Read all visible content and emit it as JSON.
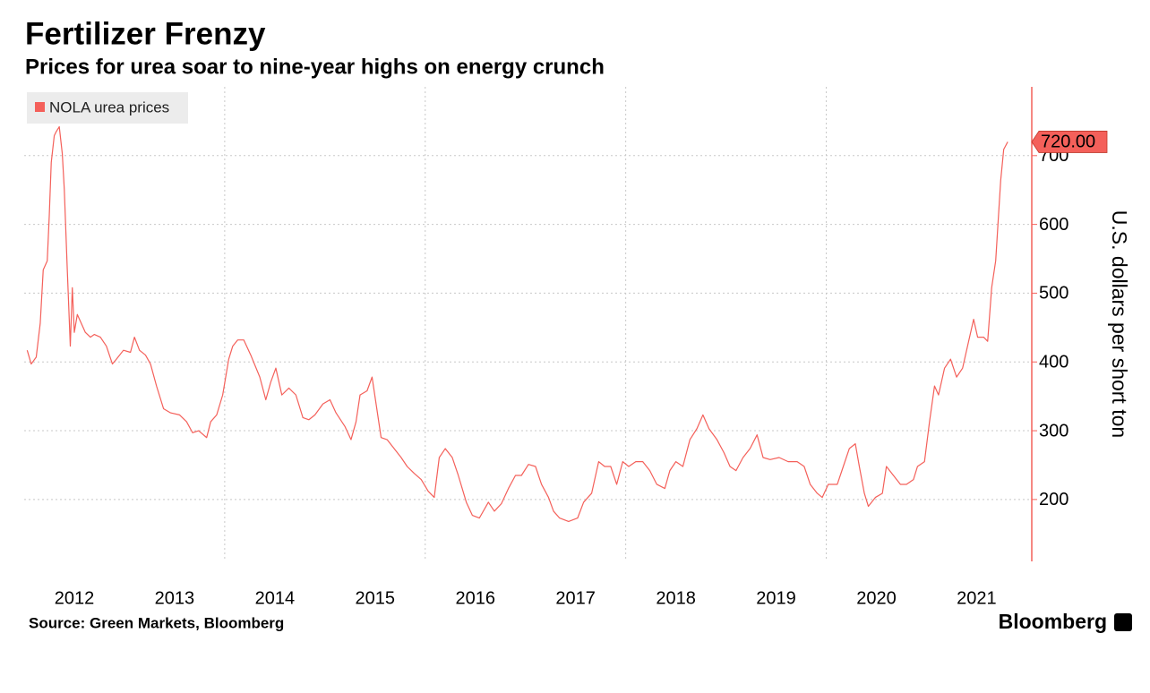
{
  "chart_data": {
    "type": "line",
    "title": "Fertilizer Frenzy",
    "subtitle": "Prices for urea soar to nine-year highs on energy crunch",
    "y_label": "U.S. dollars per short ton",
    "source": "Source: Green Markets, Bloomberg",
    "brand": "Bloomberg",
    "legend": "top-left",
    "y_axis_side": "right",
    "grid": true,
    "xlim": [
      2012.0,
      2022.05
    ],
    "ylim": [
      110,
      800
    ],
    "xticks": [
      {
        "value": 2012.5,
        "label": "2012"
      },
      {
        "value": 2013.5,
        "label": "2013"
      },
      {
        "value": 2014.5,
        "label": "2014"
      },
      {
        "value": 2015.5,
        "label": "2015"
      },
      {
        "value": 2016.5,
        "label": "2016"
      },
      {
        "value": 2017.5,
        "label": "2017"
      },
      {
        "value": 2018.5,
        "label": "2018"
      },
      {
        "value": 2019.5,
        "label": "2019"
      },
      {
        "value": 2020.5,
        "label": "2020"
      },
      {
        "value": 2021.5,
        "label": "2021"
      }
    ],
    "xgrid": [
      2014,
      2016,
      2018,
      2020
    ],
    "yticks": [
      200,
      300,
      400,
      500,
      600,
      700
    ],
    "x": [
      2012.03,
      2012.07,
      2012.12,
      2012.16,
      2012.19,
      2012.23,
      2012.25,
      2012.27,
      2012.3,
      2012.32,
      2012.35,
      2012.38,
      2012.4,
      2012.43,
      2012.46,
      2012.48,
      2012.5,
      2012.53,
      2012.57,
      2012.61,
      2012.66,
      2012.7,
      2012.76,
      2012.82,
      2012.88,
      2012.92,
      2012.99,
      2013.06,
      2013.1,
      2013.15,
      2013.21,
      2013.26,
      2013.32,
      2013.39,
      2013.46,
      2013.55,
      2013.62,
      2013.68,
      2013.74,
      2013.82,
      2013.86,
      2013.92,
      2013.98,
      2014.04,
      2014.08,
      2014.13,
      2014.19,
      2014.26,
      2014.35,
      2014.41,
      2014.46,
      2014.51,
      2014.57,
      2014.64,
      2014.71,
      2014.78,
      2014.84,
      2014.9,
      2014.98,
      2015.05,
      2015.11,
      2015.2,
      2015.26,
      2015.31,
      2015.35,
      2015.42,
      2015.47,
      2015.51,
      2015.56,
      2015.62,
      2015.69,
      2015.76,
      2015.82,
      2015.89,
      2015.96,
      2016.03,
      2016.09,
      2016.14,
      2016.2,
      2016.27,
      2016.33,
      2016.41,
      2016.47,
      2016.54,
      2016.63,
      2016.69,
      2016.76,
      2016.83,
      2016.9,
      2016.96,
      2017.03,
      2017.1,
      2017.16,
      2017.23,
      2017.28,
      2017.34,
      2017.43,
      2017.52,
      2017.58,
      2017.66,
      2017.73,
      2017.79,
      2017.85,
      2017.91,
      2017.97,
      2018.03,
      2018.1,
      2018.17,
      2018.24,
      2018.31,
      2018.39,
      2018.44,
      2018.5,
      2018.57,
      2018.64,
      2018.71,
      2018.77,
      2018.83,
      2018.91,
      2018.98,
      2019.04,
      2019.1,
      2019.17,
      2019.24,
      2019.31,
      2019.37,
      2019.44,
      2019.53,
      2019.62,
      2019.71,
      2019.78,
      2019.84,
      2019.91,
      2019.96,
      2020.02,
      2020.11,
      2020.17,
      2020.23,
      2020.29,
      2020.33,
      2020.38,
      2020.42,
      2020.49,
      2020.56,
      2020.6,
      2020.67,
      2020.74,
      2020.8,
      2020.87,
      2020.91,
      2020.98,
      2021.03,
      2021.08,
      2021.12,
      2021.18,
      2021.24,
      2021.3,
      2021.36,
      2021.42,
      2021.47,
      2021.51,
      2021.57,
      2021.61,
      2021.65,
      2021.69,
      2021.74,
      2021.77,
      2021.81
    ],
    "series": [
      {
        "name": "NOLA urea prices",
        "color": "#f4605a",
        "values": [
          417,
          397,
          407,
          456,
          534,
          547,
          612,
          690,
          729,
          735,
          742,
          703,
          651,
          534,
          423,
          508,
          443,
          469,
          456,
          443,
          436,
          440,
          436,
          423,
          397,
          404,
          417,
          414,
          436,
          417,
          410,
          397,
          365,
          332,
          326,
          323,
          313,
          297,
          300,
          290,
          313,
          323,
          352,
          404,
          423,
          432,
          432,
          410,
          378,
          345,
          371,
          391,
          352,
          362,
          352,
          319,
          316,
          323,
          339,
          345,
          326,
          306,
          287,
          313,
          352,
          358,
          378,
          339,
          290,
          287,
          274,
          261,
          248,
          238,
          229,
          212,
          203,
          261,
          274,
          261,
          235,
          196,
          177,
          173,
          196,
          183,
          194,
          216,
          235,
          235,
          251,
          248,
          222,
          203,
          183,
          173,
          168,
          173,
          196,
          209,
          255,
          248,
          248,
          222,
          255,
          248,
          255,
          255,
          242,
          222,
          216,
          242,
          255,
          248,
          287,
          303,
          323,
          303,
          287,
          268,
          248,
          242,
          261,
          274,
          294,
          261,
          258,
          261,
          255,
          255,
          248,
          222,
          209,
          203,
          222,
          222,
          248,
          274,
          281,
          248,
          209,
          190,
          203,
          209,
          248,
          235,
          222,
          222,
          229,
          248,
          255,
          313,
          365,
          352,
          391,
          404,
          378,
          391,
          430,
          462,
          436,
          436,
          430,
          508,
          547,
          664,
          709,
          720
        ],
        "value_labels": [
          null,
          null,
          null,
          null,
          null,
          null,
          null,
          null,
          null,
          null,
          null,
          null,
          null,
          null,
          null,
          null,
          null,
          null,
          null,
          null,
          null,
          null,
          null,
          null,
          null,
          null,
          null,
          null,
          null,
          null,
          null,
          null,
          null,
          null,
          null,
          null,
          null,
          null,
          null,
          null,
          null,
          null,
          null,
          null,
          null,
          null,
          null,
          null,
          null,
          null,
          null,
          null,
          null,
          null,
          null,
          null,
          null,
          null,
          null,
          null,
          null,
          null,
          null,
          null,
          null,
          null,
          null,
          null,
          null,
          null,
          null,
          null,
          null,
          null,
          null,
          null,
          null,
          null,
          null,
          null,
          null,
          null,
          null,
          null,
          null,
          null,
          null,
          null,
          null,
          null,
          null,
          null,
          null,
          null,
          null,
          null,
          null,
          null,
          null,
          null,
          null,
          null,
          null,
          null,
          null,
          null,
          null,
          null,
          null,
          null,
          null,
          null,
          null,
          null,
          null,
          null,
          null,
          null,
          null,
          null,
          null,
          null,
          null,
          null,
          null,
          null,
          null,
          null,
          null,
          null,
          null,
          null,
          null,
          null,
          null,
          null,
          null,
          null,
          null,
          null,
          null,
          null,
          null,
          null,
          null,
          null,
          null,
          null,
          null,
          null,
          null,
          null,
          null,
          null,
          null,
          null,
          null,
          null,
          null,
          null,
          null,
          null,
          null,
          null,
          null,
          null,
          null,
          "720.00"
        ]
      }
    ]
  }
}
